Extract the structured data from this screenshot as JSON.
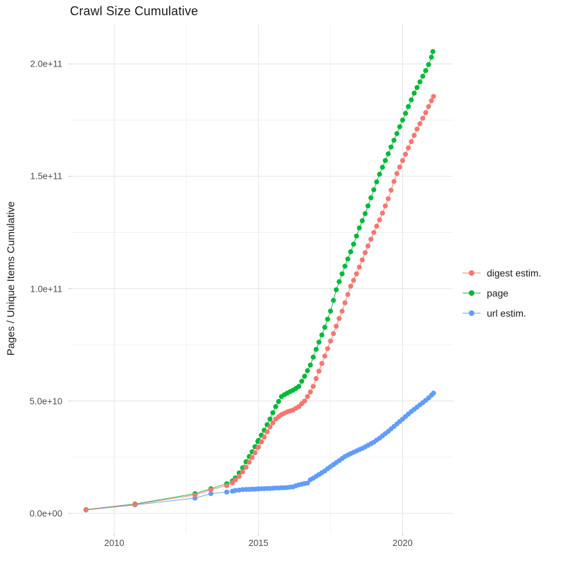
{
  "chart_data": {
    "type": "scatter",
    "title": "Crawl Size Cumulative",
    "xlabel": "",
    "ylabel": "Pages / Unique Items Cumulative",
    "y_unit": "value × 1e9 (billions)",
    "grid": true,
    "legend_position": "right",
    "xlim": [
      2008.5,
      2021.7
    ],
    "ylim_billions": [
      -9,
      218
    ],
    "x_ticks": [
      {
        "value": 2010,
        "label": "2010"
      },
      {
        "value": 2015,
        "label": "2015"
      },
      {
        "value": 2020,
        "label": "2020"
      }
    ],
    "y_ticks": [
      {
        "value": 0,
        "label": "0.0e+00"
      },
      {
        "value": 50,
        "label": "5.0e+10"
      },
      {
        "value": 100,
        "label": "1.0e+11"
      },
      {
        "value": 150,
        "label": "1.5e+11"
      },
      {
        "value": 200,
        "label": "2.0e+11"
      }
    ],
    "x_minor_gridlines": [
      2012.5,
      2017.5
    ],
    "y_minor_gridlines_billions": [
      25,
      75,
      125,
      175
    ],
    "series": [
      {
        "name": "digest estim.",
        "color": "#F8766D",
        "points": [
          [
            2009.02,
            1.6
          ],
          [
            2010.72,
            4.0
          ],
          [
            2012.8,
            8.2
          ],
          [
            2013.35,
            10.5
          ],
          [
            2013.9,
            12.4
          ],
          [
            2014.1,
            13.6
          ],
          [
            2014.2,
            14.9
          ],
          [
            2014.33,
            16.5
          ],
          [
            2014.45,
            18.5
          ],
          [
            2014.57,
            20.5
          ],
          [
            2014.68,
            22.8
          ],
          [
            2014.78,
            24.9
          ],
          [
            2014.88,
            27.0
          ],
          [
            2014.98,
            29.3
          ],
          [
            2015.0,
            29.5
          ],
          [
            2015.1,
            31.8
          ],
          [
            2015.2,
            34
          ],
          [
            2015.3,
            36.3
          ],
          [
            2015.4,
            38.5
          ],
          [
            2015.5,
            40.3
          ],
          [
            2015.6,
            42
          ],
          [
            2015.7,
            43
          ],
          [
            2015.8,
            44
          ],
          [
            2015.9,
            44.6
          ],
          [
            2016.0,
            45.2
          ],
          [
            2016.1,
            45.6
          ],
          [
            2016.2,
            46
          ],
          [
            2016.3,
            46.8
          ],
          [
            2016.4,
            47.5
          ],
          [
            2016.5,
            48.8
          ],
          [
            2016.6,
            50
          ],
          [
            2016.7,
            52
          ],
          [
            2016.8,
            54
          ],
          [
            2016.9,
            56.5
          ],
          [
            2017.0,
            60
          ],
          [
            2017.1,
            63.3
          ],
          [
            2017.2,
            66.7
          ],
          [
            2017.3,
            70
          ],
          [
            2017.4,
            73.3
          ],
          [
            2017.5,
            76.7
          ],
          [
            2017.6,
            80
          ],
          [
            2017.7,
            83.3
          ],
          [
            2017.8,
            86.7
          ],
          [
            2017.9,
            90
          ],
          [
            2018.0,
            93.7
          ],
          [
            2018.1,
            97.4
          ],
          [
            2018.2,
            101.1
          ],
          [
            2018.3,
            103.7
          ],
          [
            2018.4,
            106.6
          ],
          [
            2018.5,
            109.6
          ],
          [
            2018.6,
            112.8
          ],
          [
            2018.7,
            116
          ],
          [
            2018.8,
            119
          ],
          [
            2018.9,
            122
          ],
          [
            2019.0,
            125
          ],
          [
            2019.1,
            127.8
          ],
          [
            2019.2,
            130.6
          ],
          [
            2019.3,
            133.6
          ],
          [
            2019.4,
            136.8
          ],
          [
            2019.5,
            140
          ],
          [
            2019.6,
            143.8
          ],
          [
            2019.7,
            147.7
          ],
          [
            2019.8,
            151.2
          ],
          [
            2019.9,
            154.1
          ],
          [
            2020.0,
            157
          ],
          [
            2020.1,
            159.8
          ],
          [
            2020.2,
            162.6
          ],
          [
            2020.3,
            165.4
          ],
          [
            2020.4,
            168.2
          ],
          [
            2020.5,
            171
          ],
          [
            2020.6,
            173.4
          ],
          [
            2020.7,
            175.8
          ],
          [
            2020.8,
            178.3
          ],
          [
            2020.9,
            181
          ],
          [
            2021.0,
            183.6
          ],
          [
            2021.07,
            185.5
          ]
        ]
      },
      {
        "name": "page",
        "color": "#00BA38",
        "points": [
          [
            2009.02,
            1.7
          ],
          [
            2010.72,
            4.2
          ],
          [
            2012.8,
            8.8
          ],
          [
            2013.35,
            11.0
          ],
          [
            2013.9,
            13.2
          ],
          [
            2014.1,
            14.5
          ],
          [
            2014.2,
            15.8
          ],
          [
            2014.33,
            18.0
          ],
          [
            2014.45,
            20.3
          ],
          [
            2014.57,
            23.0
          ],
          [
            2014.68,
            25.3
          ],
          [
            2014.78,
            27.4
          ],
          [
            2014.88,
            29.7
          ],
          [
            2014.98,
            32.0
          ],
          [
            2015.0,
            32.5
          ],
          [
            2015.1,
            34.8
          ],
          [
            2015.2,
            37
          ],
          [
            2015.3,
            39.5
          ],
          [
            2015.4,
            42
          ],
          [
            2015.5,
            44.8
          ],
          [
            2015.6,
            47.5
          ],
          [
            2015.7,
            49.8
          ],
          [
            2015.8,
            52
          ],
          [
            2015.9,
            52.8
          ],
          [
            2016.0,
            53.5
          ],
          [
            2016.1,
            54.2
          ],
          [
            2016.2,
            54.8
          ],
          [
            2016.3,
            55.6
          ],
          [
            2016.4,
            56.5
          ],
          [
            2016.5,
            58.8
          ],
          [
            2016.6,
            61
          ],
          [
            2016.7,
            63.5
          ],
          [
            2016.8,
            66
          ],
          [
            2016.9,
            69.5
          ],
          [
            2017.0,
            73
          ],
          [
            2017.1,
            76.2
          ],
          [
            2017.2,
            79.4
          ],
          [
            2017.3,
            82.8
          ],
          [
            2017.4,
            86.4
          ],
          [
            2017.5,
            90
          ],
          [
            2017.6,
            94.8
          ],
          [
            2017.7,
            99.5
          ],
          [
            2017.8,
            103.1
          ],
          [
            2017.9,
            106.6
          ],
          [
            2018.0,
            110
          ],
          [
            2018.1,
            113.2
          ],
          [
            2018.2,
            116.4
          ],
          [
            2018.3,
            119.8
          ],
          [
            2018.4,
            123.4
          ],
          [
            2018.5,
            127
          ],
          [
            2018.6,
            130.2
          ],
          [
            2018.7,
            133.4
          ],
          [
            2018.8,
            136.8
          ],
          [
            2018.9,
            140.4
          ],
          [
            2019.0,
            144
          ],
          [
            2019.1,
            147.5
          ],
          [
            2019.2,
            150.9
          ],
          [
            2019.3,
            154
          ],
          [
            2019.4,
            157
          ],
          [
            2019.5,
            160
          ],
          [
            2019.6,
            163
          ],
          [
            2019.7,
            166
          ],
          [
            2019.8,
            169
          ],
          [
            2019.9,
            172
          ],
          [
            2020.0,
            175
          ],
          [
            2020.1,
            178
          ],
          [
            2020.2,
            181
          ],
          [
            2020.3,
            184
          ],
          [
            2020.4,
            187
          ],
          [
            2020.5,
            189.5
          ],
          [
            2020.6,
            192
          ],
          [
            2020.7,
            194.5
          ],
          [
            2020.8,
            197
          ],
          [
            2020.9,
            199.7
          ],
          [
            2021.0,
            203
          ],
          [
            2021.05,
            205.5
          ]
        ]
      },
      {
        "name": "url estim.",
        "color": "#619CFF",
        "points": [
          [
            2009.02,
            1.5
          ],
          [
            2010.72,
            3.8
          ],
          [
            2012.8,
            6.8
          ],
          [
            2013.35,
            8.8
          ],
          [
            2013.9,
            9.5
          ],
          [
            2014.1,
            9.9
          ],
          [
            2014.2,
            10.2
          ],
          [
            2014.33,
            10.4
          ],
          [
            2014.45,
            10.6
          ],
          [
            2014.57,
            10.7
          ],
          [
            2014.68,
            10.7
          ],
          [
            2014.78,
            10.8
          ],
          [
            2014.88,
            10.8
          ],
          [
            2014.98,
            10.9
          ],
          [
            2015.0,
            10.9
          ],
          [
            2015.1,
            11.0
          ],
          [
            2015.2,
            11.0
          ],
          [
            2015.3,
            11.1
          ],
          [
            2015.4,
            11.1
          ],
          [
            2015.5,
            11.2
          ],
          [
            2015.6,
            11.3
          ],
          [
            2015.7,
            11.3
          ],
          [
            2015.8,
            11.4
          ],
          [
            2015.9,
            11.4
          ],
          [
            2016.0,
            11.5
          ],
          [
            2016.1,
            11.7
          ],
          [
            2016.2,
            11.8
          ],
          [
            2016.3,
            12.3
          ],
          [
            2016.4,
            12.7
          ],
          [
            2016.5,
            13.0
          ],
          [
            2016.6,
            13.3
          ],
          [
            2016.7,
            13.5
          ],
          [
            2016.8,
            15.0
          ],
          [
            2016.9,
            15.7
          ],
          [
            2017.0,
            16.5
          ],
          [
            2017.1,
            17.3
          ],
          [
            2017.2,
            18.1
          ],
          [
            2017.3,
            18.9
          ],
          [
            2017.4,
            19.9
          ],
          [
            2017.5,
            20.8
          ],
          [
            2017.6,
            21.7
          ],
          [
            2017.7,
            22.6
          ],
          [
            2017.8,
            23.5
          ],
          [
            2017.9,
            24.4
          ],
          [
            2018.0,
            25.3
          ],
          [
            2018.1,
            26.0
          ],
          [
            2018.2,
            26.6
          ],
          [
            2018.3,
            27.2
          ],
          [
            2018.4,
            27.8
          ],
          [
            2018.5,
            28.4
          ],
          [
            2018.6,
            28.9
          ],
          [
            2018.7,
            29.6
          ],
          [
            2018.8,
            30.3
          ],
          [
            2018.9,
            31.0
          ],
          [
            2019.0,
            31.7
          ],
          [
            2019.1,
            32.6
          ],
          [
            2019.2,
            33.5
          ],
          [
            2019.3,
            34.5
          ],
          [
            2019.4,
            35.5
          ],
          [
            2019.5,
            36.5
          ],
          [
            2019.6,
            37.6
          ],
          [
            2019.7,
            38.7
          ],
          [
            2019.8,
            39.8
          ],
          [
            2019.9,
            40.9
          ],
          [
            2020.0,
            42.0
          ],
          [
            2020.1,
            43.1
          ],
          [
            2020.2,
            44.2
          ],
          [
            2020.3,
            45.3
          ],
          [
            2020.4,
            46.3
          ],
          [
            2020.5,
            47.3
          ],
          [
            2020.6,
            48.3
          ],
          [
            2020.7,
            49.3
          ],
          [
            2020.8,
            50.3
          ],
          [
            2020.9,
            51.4
          ],
          [
            2021.0,
            52.6
          ],
          [
            2021.07,
            53.5
          ]
        ]
      }
    ],
    "style": {
      "background": "#ffffff",
      "major_grid_color": "#e4e4e4",
      "minor_grid_color": "#f1f1f1",
      "tick_mark_color": "#c9c9c9",
      "axis_text_color": "#4d4d4d",
      "title_color": "#1a1a1a"
    }
  }
}
